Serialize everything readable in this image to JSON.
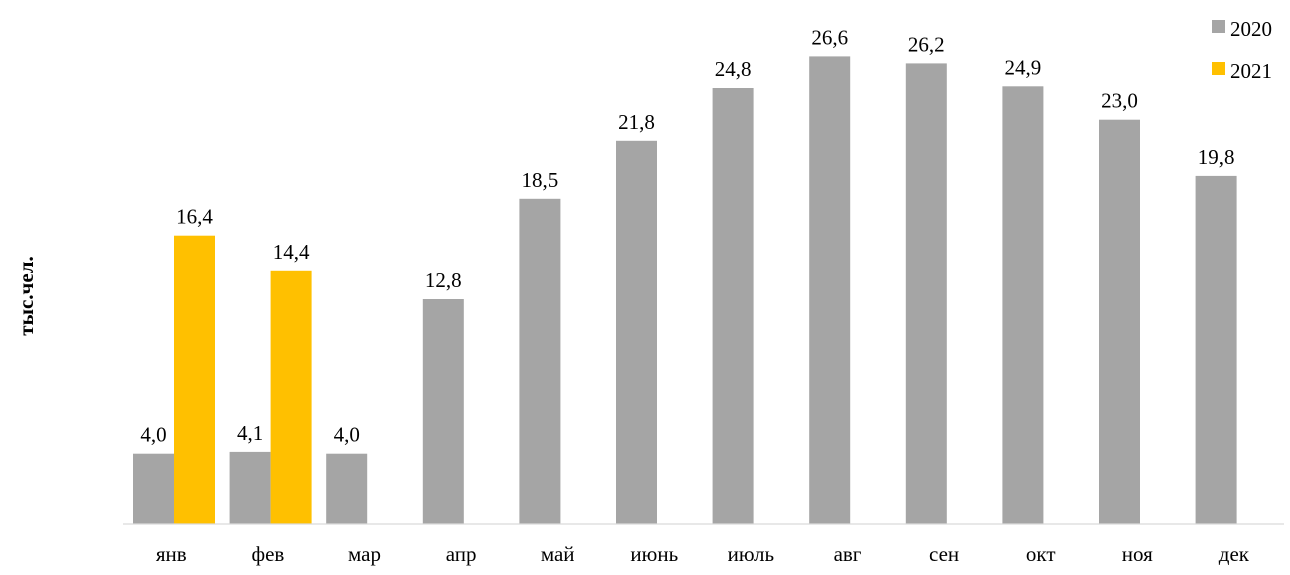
{
  "chart_data": {
    "type": "bar",
    "title": "",
    "xlabel": "",
    "ylabel": "тыс.чел.",
    "ylim": [
      0,
      28
    ],
    "grid": false,
    "legend_position": "top-right",
    "categories": [
      "янв",
      "фев",
      "мар",
      "апр",
      "май",
      "июнь",
      "июль",
      "авг",
      "сен",
      "окт",
      "ноя",
      "дек"
    ],
    "series": [
      {
        "name": "2020",
        "color": "#a5a5a5",
        "values": [
          4.0,
          4.1,
          4.0,
          12.8,
          18.5,
          21.8,
          24.8,
          26.6,
          26.2,
          24.9,
          23.0,
          19.8
        ],
        "labels": [
          "4,0",
          "4,1",
          "4,0",
          "12,8",
          "18,5",
          "21,8",
          "24,8",
          "26,6",
          "26,2",
          "24,9",
          "23,0",
          "19,8"
        ]
      },
      {
        "name": "2021",
        "color": "#ffc000",
        "values": [
          16.4,
          14.4,
          null,
          null,
          null,
          null,
          null,
          null,
          null,
          null,
          null,
          null
        ],
        "labels": [
          "16,4",
          "14,4",
          "",
          "",
          "",
          "",
          "",
          "",
          "",
          "",
          "",
          ""
        ]
      }
    ]
  }
}
